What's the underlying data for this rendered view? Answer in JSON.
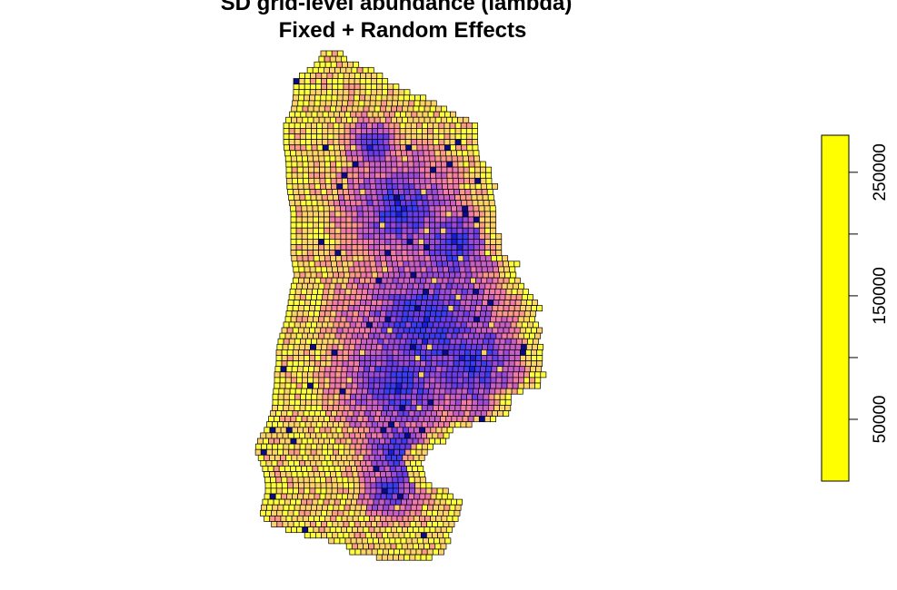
{
  "title_line1": "SD grid-level abundance (lambda)",
  "title_line2": "Fixed + Random Effects",
  "chart_data": {
    "type": "heatmap",
    "title": "SD grid-level abundance (lambda)\nFixed + Random Effects",
    "subtitle": "",
    "xlabel": "",
    "ylabel": "",
    "legend": {
      "position": "right",
      "range": [
        0,
        280000
      ],
      "ticks": [
        50000,
        100000,
        150000,
        200000,
        250000
      ],
      "tick_labels": [
        "50000",
        "",
        "150000",
        "",
        "250000"
      ],
      "colors": [
        "#ffff00",
        "#ffff00"
      ]
    },
    "palette": [
      "#0a0a8c",
      "#1c1cd8",
      "#3b3bf2",
      "#6a3ce8",
      "#9a4ad8",
      "#c85fc4",
      "#f07aa8",
      "#fc9a8a",
      "#fdd26a",
      "#ffff40"
    ],
    "grid": true,
    "note_series": "Gridded map of cell values; low values (dark blue) in the central-eastern core, higher values (pink to yellow) toward the western and southern edges."
  }
}
